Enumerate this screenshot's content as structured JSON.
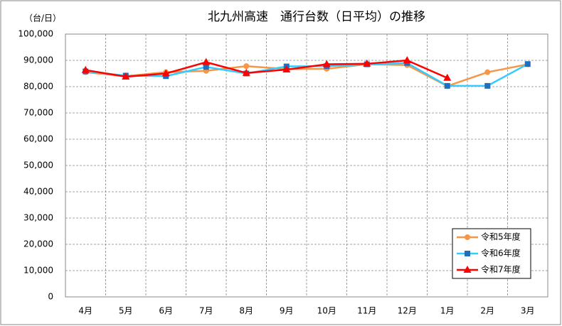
{
  "chart_data": {
    "type": "line",
    "title": "北九州高速　通行台数（日平均）の推移",
    "y_label": "（台/日）",
    "categories": [
      "4月",
      "5月",
      "6月",
      "7月",
      "8月",
      "9月",
      "10月",
      "11月",
      "12月",
      "1月",
      "2月",
      "3月"
    ],
    "series": [
      {
        "name": "令和5年度",
        "color": "#f79646",
        "marker": "circle",
        "marker_color": "#f79646",
        "values": [
          85500,
          84000,
          85500,
          86000,
          87800,
          86700,
          86800,
          88500,
          88200,
          80200,
          85500,
          88500
        ]
      },
      {
        "name": "令和6年度",
        "color": "#33ccff",
        "marker": "square",
        "marker_color": "#1f6fbf",
        "values": [
          85800,
          84200,
          84000,
          87500,
          85000,
          87700,
          87800,
          88500,
          89000,
          80300,
          80300,
          88600
        ]
      },
      {
        "name": "令和7年度",
        "color": "#ff0000",
        "marker": "triangle",
        "marker_color": "#ff0000",
        "values": [
          86300,
          83800,
          85000,
          89300,
          85200,
          86500,
          88500,
          88700,
          90000,
          83300,
          null,
          null
        ]
      }
    ],
    "ylim": [
      0,
      100000
    ],
    "yticks": [
      0,
      {
        "value": 10000,
        "label": "10,000"
      },
      {
        "value": 20000,
        "label": "20,000"
      },
      {
        "value": 30000,
        "label": "30,000"
      },
      {
        "value": 40000,
        "label": "40,000"
      },
      {
        "value": 50000,
        "label": "50,000"
      },
      {
        "value": 60000,
        "label": "60,000"
      },
      {
        "value": 70000,
        "label": "70,000"
      },
      {
        "value": 80000,
        "label": "80,000"
      },
      {
        "value": 90000,
        "label": "90,000"
      },
      {
        "value": 100000,
        "label": "100,000"
      }
    ],
    "grid": true,
    "legend": "lower right"
  }
}
